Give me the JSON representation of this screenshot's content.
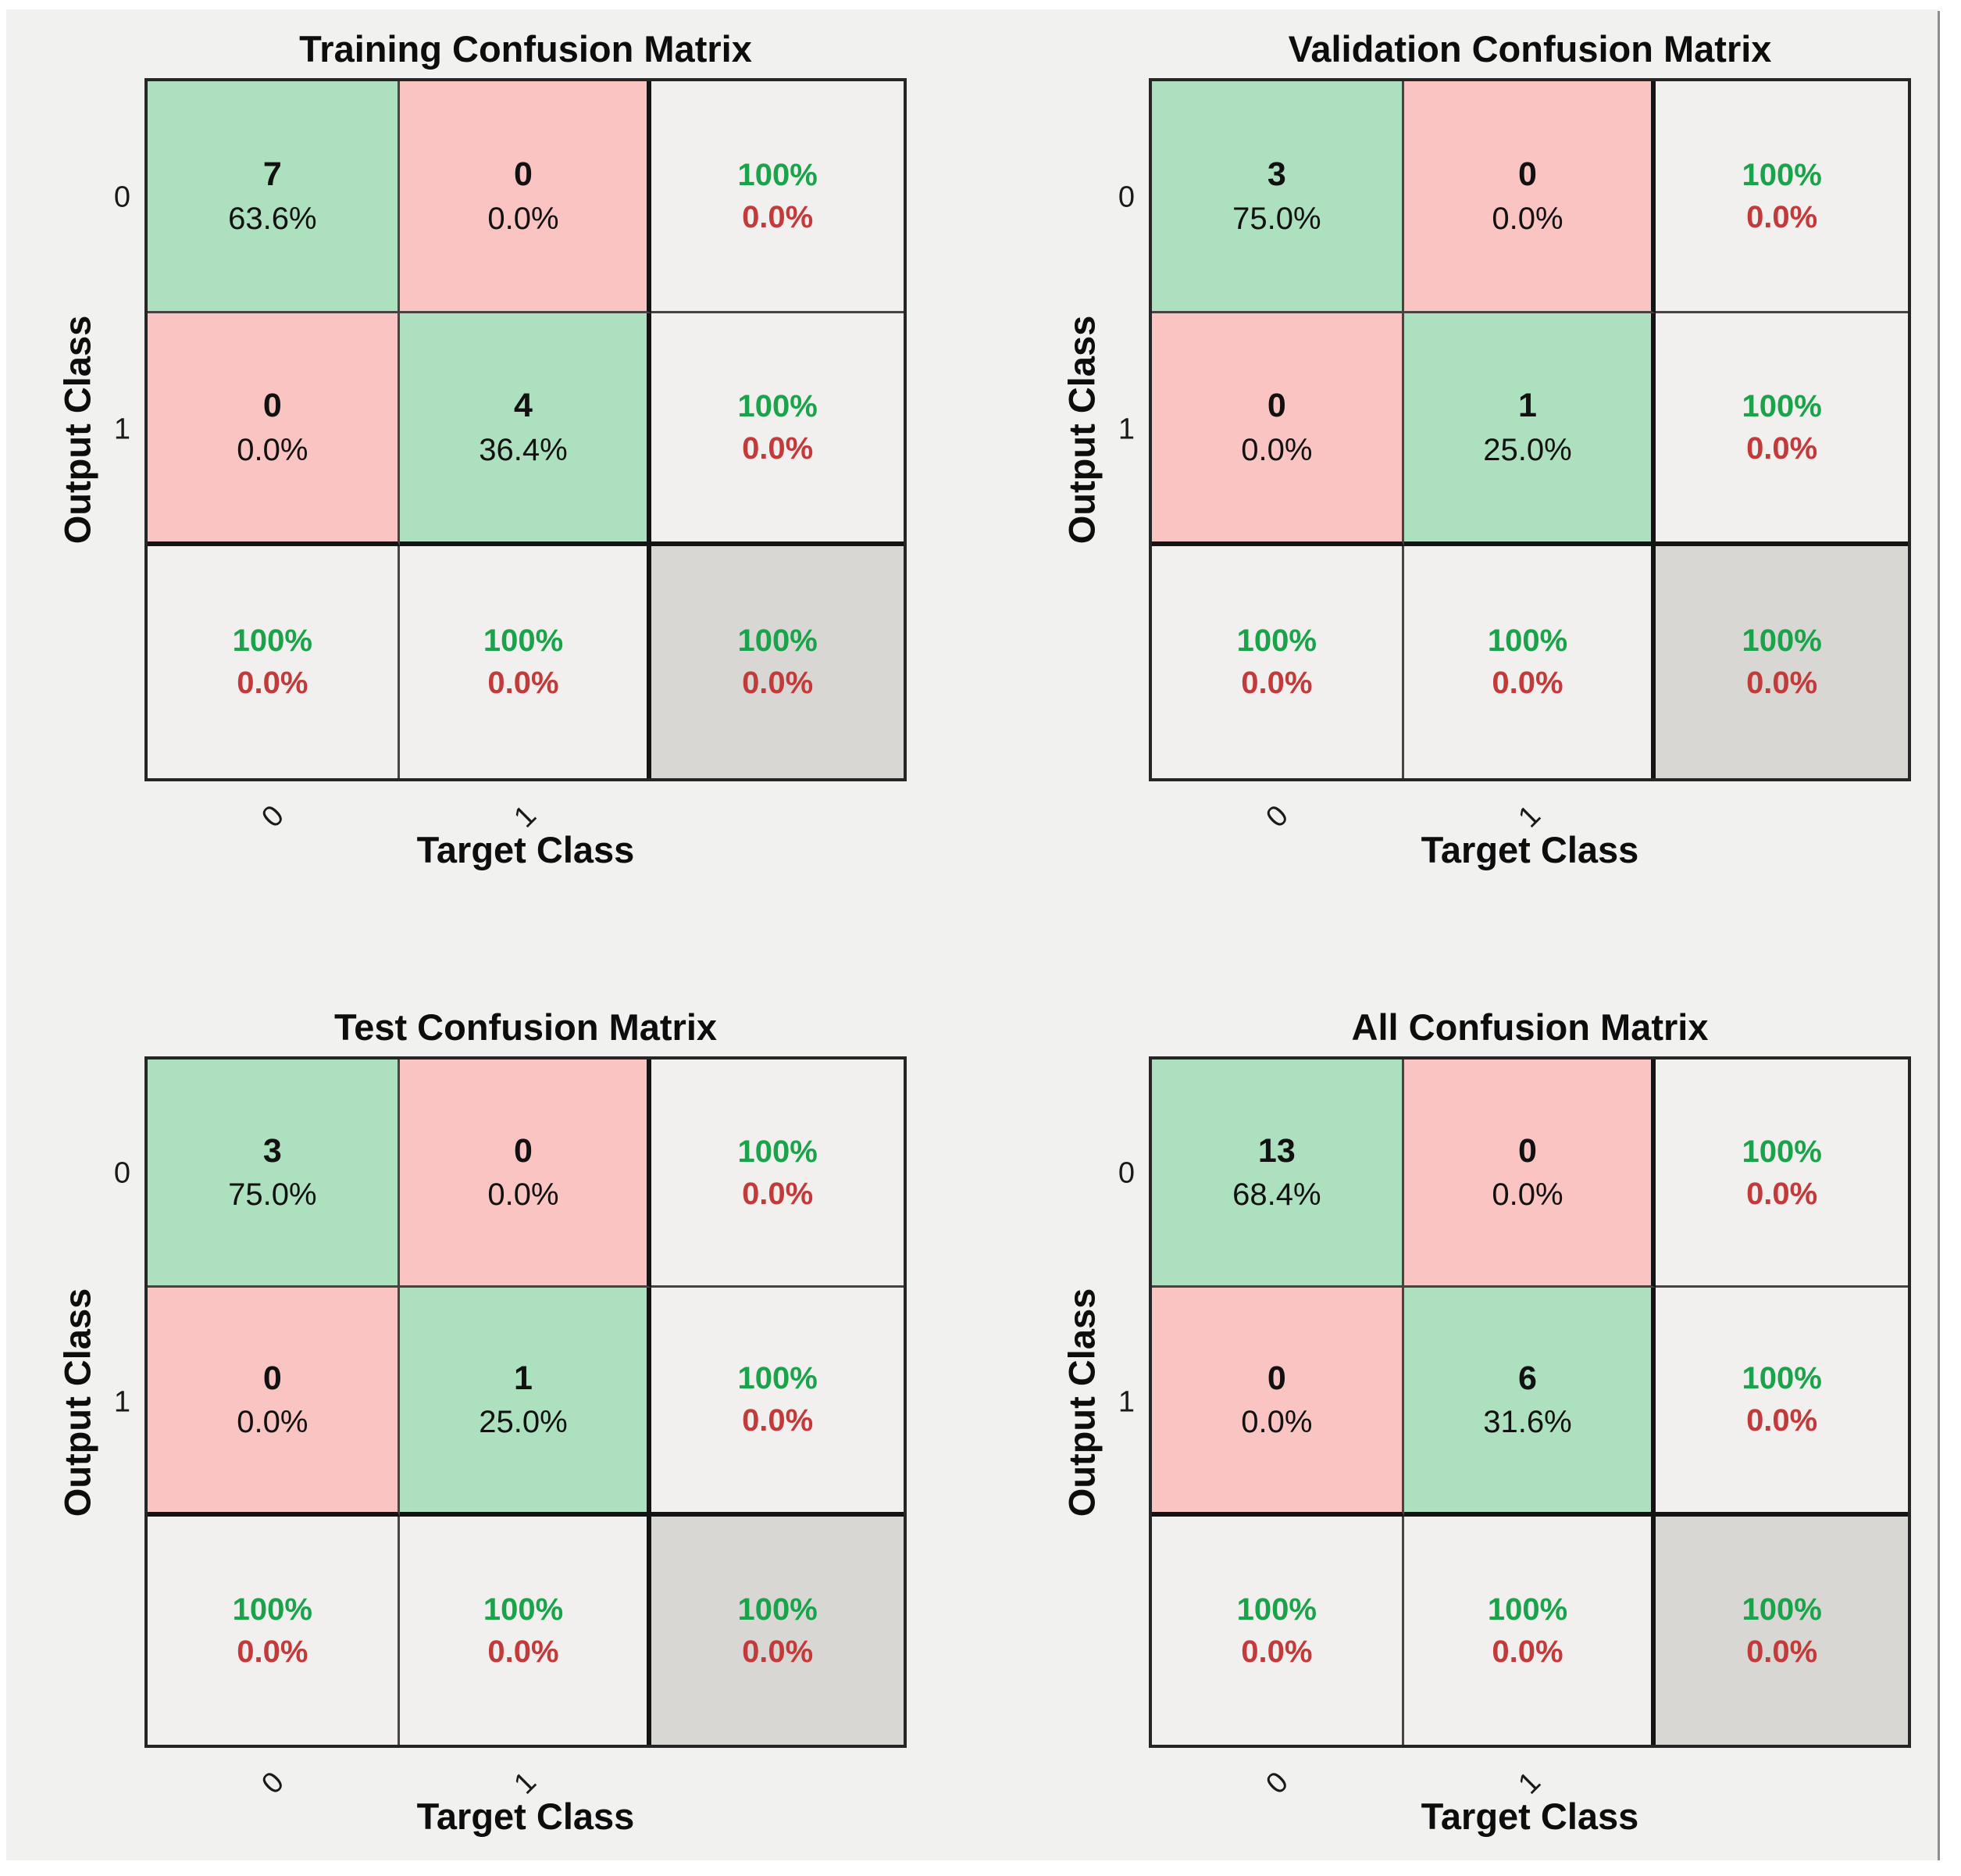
{
  "figure": {
    "background": "#f1f1ef",
    "frame_color": "#ffffff",
    "edge_line_color": "#8e8e8e"
  },
  "colors": {
    "diagonal_cell": "#ade0bf",
    "off_diagonal_cell": "#f9c4c1",
    "summary_cell": "#f1f0ee",
    "total_cell": "#d8d7d4",
    "green_text": "#1aa34a",
    "red_text": "#c23a3a",
    "number_text": "#111111"
  },
  "panels": [
    {
      "title": "Training Confusion Matrix",
      "xlabel": "Target Class",
      "ylabel": "Output Class",
      "xticks": [
        "0",
        "1"
      ],
      "yticks": [
        "0",
        "1"
      ],
      "cells": [
        {
          "line1": "7",
          "line2": "63.6%"
        },
        {
          "line1": "0",
          "line2": "0.0%"
        },
        {
          "line1": "100%",
          "line2": "0.0%"
        },
        {
          "line1": "0",
          "line2": "0.0%"
        },
        {
          "line1": "4",
          "line2": "36.4%"
        },
        {
          "line1": "100%",
          "line2": "0.0%"
        },
        {
          "line1": "100%",
          "line2": "0.0%"
        },
        {
          "line1": "100%",
          "line2": "0.0%"
        },
        {
          "line1": "100%",
          "line2": "0.0%"
        }
      ]
    },
    {
      "title": "Validation Confusion Matrix",
      "xlabel": "Target Class",
      "ylabel": "Output Class",
      "xticks": [
        "0",
        "1"
      ],
      "yticks": [
        "0",
        "1"
      ],
      "cells": [
        {
          "line1": "3",
          "line2": "75.0%"
        },
        {
          "line1": "0",
          "line2": "0.0%"
        },
        {
          "line1": "100%",
          "line2": "0.0%"
        },
        {
          "line1": "0",
          "line2": "0.0%"
        },
        {
          "line1": "1",
          "line2": "25.0%"
        },
        {
          "line1": "100%",
          "line2": "0.0%"
        },
        {
          "line1": "100%",
          "line2": "0.0%"
        },
        {
          "line1": "100%",
          "line2": "0.0%"
        },
        {
          "line1": "100%",
          "line2": "0.0%"
        }
      ]
    },
    {
      "title": "Test Confusion Matrix",
      "xlabel": "Target Class",
      "ylabel": "Output Class",
      "xticks": [
        "0",
        "1"
      ],
      "yticks": [
        "0",
        "1"
      ],
      "cells": [
        {
          "line1": "3",
          "line2": "75.0%"
        },
        {
          "line1": "0",
          "line2": "0.0%"
        },
        {
          "line1": "100%",
          "line2": "0.0%"
        },
        {
          "line1": "0",
          "line2": "0.0%"
        },
        {
          "line1": "1",
          "line2": "25.0%"
        },
        {
          "line1": "100%",
          "line2": "0.0%"
        },
        {
          "line1": "100%",
          "line2": "0.0%"
        },
        {
          "line1": "100%",
          "line2": "0.0%"
        },
        {
          "line1": "100%",
          "line2": "0.0%"
        }
      ]
    },
    {
      "title": "All Confusion Matrix",
      "xlabel": "Target Class",
      "ylabel": "Output Class",
      "xticks": [
        "0",
        "1"
      ],
      "yticks": [
        "0",
        "1"
      ],
      "cells": [
        {
          "line1": "13",
          "line2": "68.4%"
        },
        {
          "line1": "0",
          "line2": "0.0%"
        },
        {
          "line1": "100%",
          "line2": "0.0%"
        },
        {
          "line1": "0",
          "line2": "0.0%"
        },
        {
          "line1": "6",
          "line2": "31.6%"
        },
        {
          "line1": "100%",
          "line2": "0.0%"
        },
        {
          "line1": "100%",
          "line2": "0.0%"
        },
        {
          "line1": "100%",
          "line2": "0.0%"
        },
        {
          "line1": "100%",
          "line2": "0.0%"
        }
      ]
    }
  ],
  "chart_data": [
    {
      "type": "heatmap",
      "title": "Training Confusion Matrix",
      "xlabel": "Target Class",
      "ylabel": "Output Class",
      "classes": [
        "0",
        "1"
      ],
      "counts": [
        [
          7,
          0
        ],
        [
          0,
          4
        ]
      ],
      "percent_of_total": [
        [
          63.6,
          0.0
        ],
        [
          0.0,
          36.4
        ]
      ],
      "row_summary_green_red": [
        [
          "100%",
          "0.0%"
        ],
        [
          "100%",
          "0.0%"
        ]
      ],
      "col_summary_green_red": [
        [
          "100%",
          "0.0%"
        ],
        [
          "100%",
          "0.0%"
        ]
      ],
      "overall_green_red": [
        "100%",
        "0.0%"
      ],
      "legend_position": "none",
      "grid": true
    },
    {
      "type": "heatmap",
      "title": "Validation Confusion Matrix",
      "xlabel": "Target Class",
      "ylabel": "Output Class",
      "classes": [
        "0",
        "1"
      ],
      "counts": [
        [
          3,
          0
        ],
        [
          0,
          1
        ]
      ],
      "percent_of_total": [
        [
          75.0,
          0.0
        ],
        [
          0.0,
          25.0
        ]
      ],
      "row_summary_green_red": [
        [
          "100%",
          "0.0%"
        ],
        [
          "100%",
          "0.0%"
        ]
      ],
      "col_summary_green_red": [
        [
          "100%",
          "0.0%"
        ],
        [
          "100%",
          "0.0%"
        ]
      ],
      "overall_green_red": [
        "100%",
        "0.0%"
      ],
      "legend_position": "none",
      "grid": true
    },
    {
      "type": "heatmap",
      "title": "Test Confusion Matrix",
      "xlabel": "Target Class",
      "ylabel": "Output Class",
      "classes": [
        "0",
        "1"
      ],
      "counts": [
        [
          3,
          0
        ],
        [
          0,
          1
        ]
      ],
      "percent_of_total": [
        [
          75.0,
          0.0
        ],
        [
          0.0,
          25.0
        ]
      ],
      "row_summary_green_red": [
        [
          "100%",
          "0.0%"
        ],
        [
          "100%",
          "0.0%"
        ]
      ],
      "col_summary_green_red": [
        [
          "100%",
          "0.0%"
        ],
        [
          "100%",
          "0.0%"
        ]
      ],
      "overall_green_red": [
        "100%",
        "0.0%"
      ],
      "legend_position": "none",
      "grid": true
    },
    {
      "type": "heatmap",
      "title": "All Confusion Matrix",
      "xlabel": "Target Class",
      "ylabel": "Output Class",
      "classes": [
        "0",
        "1"
      ],
      "counts": [
        [
          13,
          0
        ],
        [
          0,
          6
        ]
      ],
      "percent_of_total": [
        [
          68.4,
          0.0
        ],
        [
          0.0,
          31.6
        ]
      ],
      "row_summary_green_red": [
        [
          "100%",
          "0.0%"
        ],
        [
          "100%",
          "0.0%"
        ]
      ],
      "col_summary_green_red": [
        [
          "100%",
          "0.0%"
        ],
        [
          "100%",
          "0.0%"
        ]
      ],
      "overall_green_red": [
        "100%",
        "0.0%"
      ],
      "legend_position": "none",
      "grid": true
    }
  ]
}
